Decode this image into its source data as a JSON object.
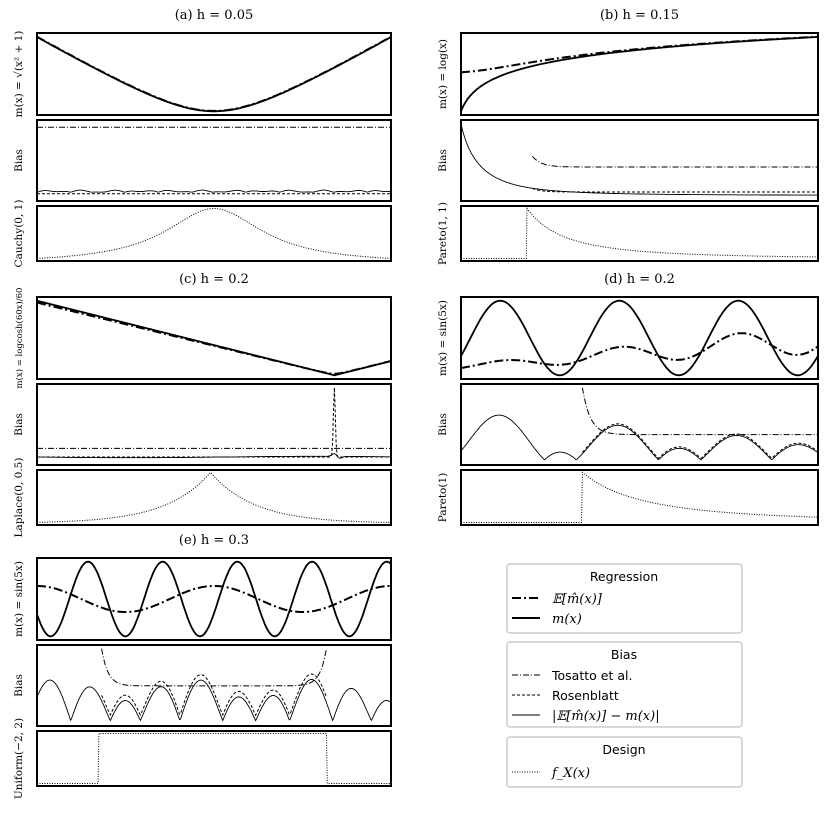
{
  "chart_data": [
    {
      "type": "line",
      "title": "(a) h = 0.05",
      "ylabels": [
        "m(x) = √(x² + 1)",
        "Bias",
        "Cauchy(0, 1)"
      ],
      "regression_function": "sqrt(x^2+1)",
      "design": "Cauchy(0, 1)",
      "bandwidth": 0.05
    },
    {
      "type": "line",
      "title": "(b) h = 0.15",
      "ylabels": [
        "m(x) = log(x)",
        "Bias",
        "Pareto(1, 1)"
      ],
      "regression_function": "log(x)",
      "design": "Pareto(1, 1)",
      "bandwidth": 0.15
    },
    {
      "type": "line",
      "title": "(c) h = 0.2",
      "ylabels": [
        "m(x) = logcosh(60x)/60",
        "Bias",
        "Laplace(0, 0.5)"
      ],
      "regression_function": "logcosh(60x)/60",
      "design": "Laplace(0, 0.5)",
      "bandwidth": 0.2
    },
    {
      "type": "line",
      "title": "(d) h = 0.2",
      "ylabels": [
        "m(x) = sin(5x)",
        "Bias",
        "Pareto(1)"
      ],
      "regression_function": "sin(5x)",
      "design": "Pareto(1)",
      "bandwidth": 0.2
    },
    {
      "type": "line",
      "title": "(e) h = 0.3",
      "ylabels": [
        "m(x) = sin(5x)",
        "Bias",
        "Uniform(−2, 2)"
      ],
      "regression_function": "sin(5x)",
      "design": "Uniform(−2, 2)",
      "bandwidth": 0.3
    }
  ],
  "legend": {
    "regression": {
      "title": "Regression",
      "items": [
        "𝔼[m̂(x)]",
        "m(x)"
      ]
    },
    "bias": {
      "title": "Bias",
      "items": [
        "Tosatto et al.",
        "Rosenblatt",
        "|𝔼[m̂(x)] − m(x)|"
      ]
    },
    "design": {
      "title": "Design",
      "items": [
        "f_X(x)"
      ]
    }
  },
  "colors": {
    "line": "#000000",
    "legend_border": "#cccccc"
  }
}
